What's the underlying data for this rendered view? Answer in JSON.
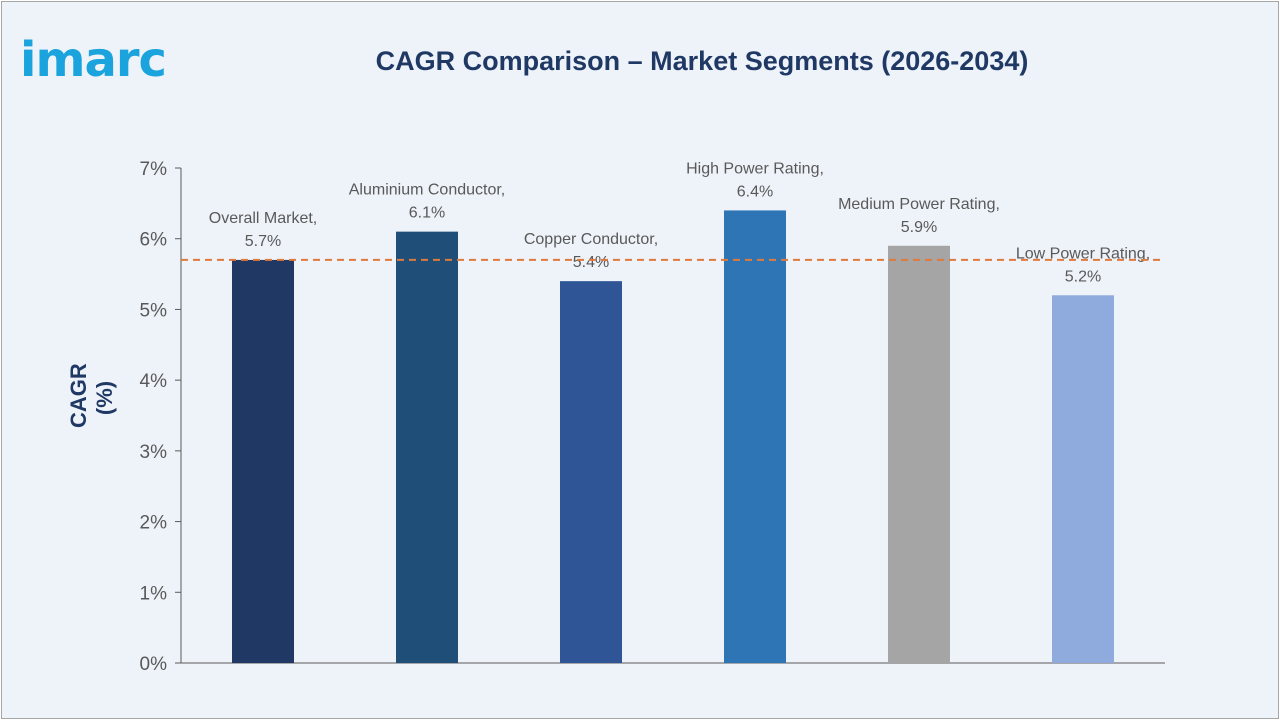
{
  "logo": {
    "text": "imarc"
  },
  "colors": {
    "background": "#eef3fa",
    "title": "#1f3864",
    "reference_line": "#e07a3a",
    "axis": "#595959",
    "label": "#595959"
  },
  "chart_data": {
    "type": "bar",
    "title": "CAGR Comparison – Market Segments (2026-2034)",
    "xlabel": "",
    "ylabel": "CAGR (%)",
    "ylim": [
      0,
      7
    ],
    "y_ticks": [
      "0%",
      "1%",
      "2%",
      "3%",
      "4%",
      "5%",
      "6%",
      "7%"
    ],
    "grid": false,
    "reference_line": {
      "value": 5.7,
      "style": "dashed",
      "color": "#e07a3a"
    },
    "categories": [
      "Overall Market",
      "Aluminium Conductor",
      "Copper Conductor",
      "High Power Rating",
      "Medium Power Rating",
      "Low Power Rating"
    ],
    "values": [
      5.7,
      6.1,
      5.4,
      6.4,
      5.9,
      5.2
    ],
    "data_labels": [
      [
        "Overall Market,",
        "5.7%"
      ],
      [
        "Aluminium Conductor,",
        "6.1%"
      ],
      [
        "Copper Conductor,",
        "5.4%"
      ],
      [
        "High Power Rating,",
        "6.4%"
      ],
      [
        "Medium Power Rating,",
        "5.9%"
      ],
      [
        "Low Power Rating,",
        "5.2%"
      ]
    ],
    "bar_colors": [
      "#203864",
      "#1f4e79",
      "#2f5597",
      "#2e75b6",
      "#a5a5a5",
      "#8faadc"
    ]
  }
}
